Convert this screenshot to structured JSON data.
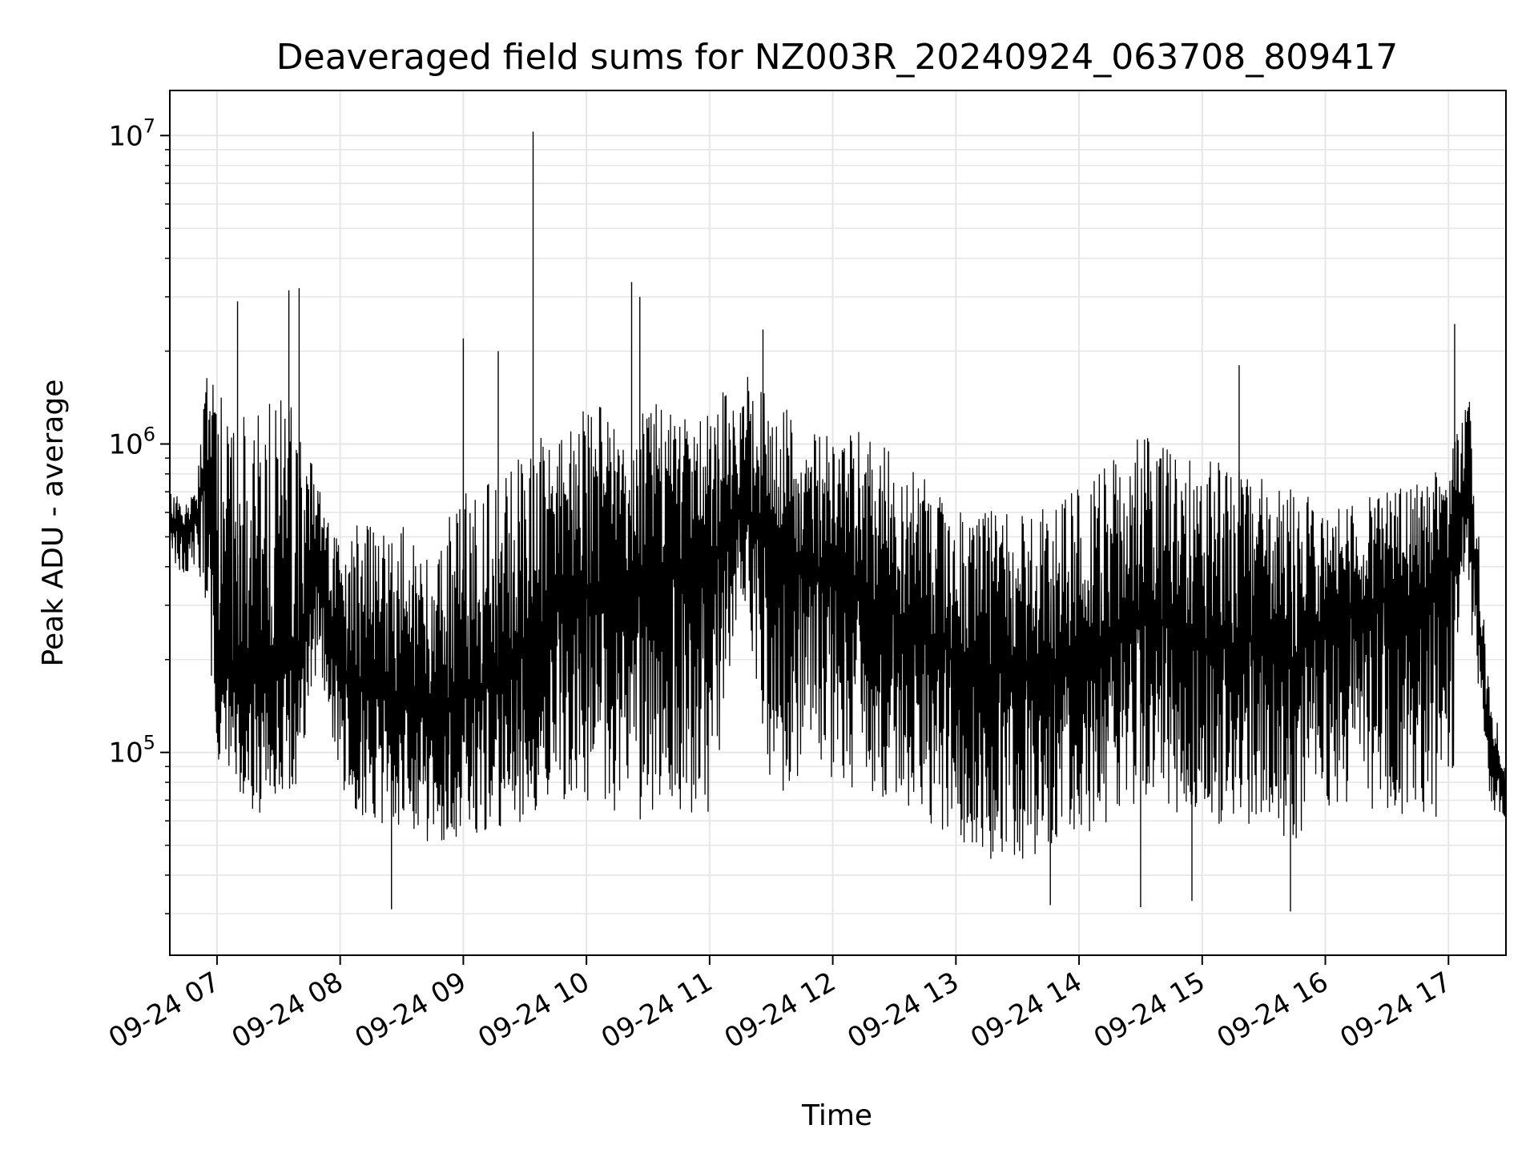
{
  "chart_data": {
    "type": "line",
    "title": "Deaveraged field sums for NZ003R_20240924_063708_809417",
    "xlabel": "Time",
    "ylabel": "Peak ADU - average",
    "yscale": "log",
    "grid": true,
    "legend": "none",
    "line_color": "#000000",
    "grid_color": "#e6e6e6",
    "xlim": [
      "2024-09-24 06:37",
      "2024-09-24 17:28"
    ],
    "ylim": [
      22000,
      14000000
    ],
    "x_ticks": [
      "2024-09-24 07:00",
      "2024-09-24 08:00",
      "2024-09-24 09:00",
      "2024-09-24 10:00",
      "2024-09-24 11:00",
      "2024-09-24 12:00",
      "2024-09-24 13:00",
      "2024-09-24 14:00",
      "2024-09-24 15:00",
      "2024-09-24 16:00",
      "2024-09-24 17:00"
    ],
    "x_tick_labels": [
      "09-24 07",
      "09-24 08",
      "09-24 09",
      "09-24 10",
      "09-24 11",
      "09-24 12",
      "09-24 13",
      "09-24 14",
      "09-24 15",
      "09-24 16",
      "09-24 17"
    ],
    "y_ticks": [
      100000,
      1000000,
      10000000
    ],
    "y_tick_labels": [
      {
        "base": "10",
        "exp": "5"
      },
      {
        "base": "10",
        "exp": "6"
      },
      {
        "base": "10",
        "exp": "7"
      }
    ],
    "series": [
      {
        "x": [
          "2024-09-24 06:37",
          "2024-09-24 06:45",
          "2024-09-24 06:50",
          "2024-09-24 06:55",
          "2024-09-24 07:00",
          "2024-09-24 07:10",
          "2024-09-24 07:20",
          "2024-09-24 07:30",
          "2024-09-24 07:40",
          "2024-09-24 07:50",
          "2024-09-24 08:00",
          "2024-09-24 08:15",
          "2024-09-24 08:30",
          "2024-09-24 08:45",
          "2024-09-24 09:00",
          "2024-09-24 09:15",
          "2024-09-24 09:30",
          "2024-09-24 09:45",
          "2024-09-24 10:00",
          "2024-09-24 10:15",
          "2024-09-24 10:30",
          "2024-09-24 10:45",
          "2024-09-24 11:00",
          "2024-09-24 11:15",
          "2024-09-24 11:30",
          "2024-09-24 11:45",
          "2024-09-24 12:00",
          "2024-09-24 12:15",
          "2024-09-24 12:30",
          "2024-09-24 12:45",
          "2024-09-24 13:00",
          "2024-09-24 13:15",
          "2024-09-24 13:30",
          "2024-09-24 13:45",
          "2024-09-24 14:00",
          "2024-09-24 14:15",
          "2024-09-24 14:30",
          "2024-09-24 14:45",
          "2024-09-24 15:00",
          "2024-09-24 15:15",
          "2024-09-24 15:30",
          "2024-09-24 15:45",
          "2024-09-24 16:00",
          "2024-09-24 16:15",
          "2024-09-24 16:30",
          "2024-09-24 16:45",
          "2024-09-24 17:00",
          "2024-09-24 17:10",
          "2024-09-24 17:20",
          "2024-09-24 17:28"
        ],
        "y_median": [
          550000,
          520000,
          560000,
          900000,
          250000,
          180000,
          170000,
          180000,
          200000,
          400000,
          170000,
          160000,
          150000,
          140000,
          160000,
          170000,
          220000,
          300000,
          320000,
          350000,
          380000,
          400000,
          420000,
          600000,
          450000,
          420000,
          380000,
          330000,
          280000,
          240000,
          210000,
          190000,
          180000,
          190000,
          210000,
          250000,
          280000,
          260000,
          230000,
          220000,
          240000,
          200000,
          280000,
          300000,
          310000,
          300000,
          420000,
          700000,
          90000,
          80000
        ],
        "y_high": [
          700000,
          650000,
          700000,
          1800000,
          1500000,
          1200000,
          1300000,
          1400000,
          1300000,
          700000,
          500000,
          600000,
          550000,
          500000,
          700000,
          800000,
          1000000,
          1100000,
          1300000,
          1400000,
          1350000,
          1350000,
          1300000,
          1900000,
          1350000,
          1300000,
          1200000,
          1100000,
          950000,
          800000,
          650000,
          620000,
          600000,
          650000,
          750000,
          900000,
          1100000,
          950000,
          900000,
          850000,
          800000,
          700000,
          650000,
          650000,
          700000,
          750000,
          900000,
          1500000,
          160000,
          95000
        ],
        "y_low": [
          400000,
          380000,
          400000,
          300000,
          90000,
          70000,
          60000,
          70000,
          80000,
          200000,
          70000,
          60000,
          55000,
          50000,
          50000,
          55000,
          60000,
          70000,
          70000,
          60000,
          60000,
          55000,
          55000,
          350000,
          70000,
          80000,
          80000,
          75000,
          70000,
          60000,
          50000,
          45000,
          45000,
          45000,
          50000,
          60000,
          70000,
          65000,
          60000,
          55000,
          55000,
          50000,
          65000,
          65000,
          65000,
          60000,
          60000,
          300000,
          65000,
          62000
        ]
      }
    ],
    "spikes": [
      {
        "x": "2024-09-24 07:10",
        "y": 2900000
      },
      {
        "x": "2024-09-24 07:35",
        "y": 3150000
      },
      {
        "x": "2024-09-24 07:40",
        "y": 3200000
      },
      {
        "x": "2024-09-24 08:25",
        "y": 31000
      },
      {
        "x": "2024-09-24 09:00",
        "y": 2200000
      },
      {
        "x": "2024-09-24 09:17",
        "y": 2000000
      },
      {
        "x": "2024-09-24 09:34",
        "y": 10300000
      },
      {
        "x": "2024-09-24 10:22",
        "y": 3350000
      },
      {
        "x": "2024-09-24 10:26",
        "y": 3000000
      },
      {
        "x": "2024-09-24 11:26",
        "y": 2350000
      },
      {
        "x": "2024-09-24 13:46",
        "y": 32000
      },
      {
        "x": "2024-09-24 14:30",
        "y": 31500
      },
      {
        "x": "2024-09-24 14:55",
        "y": 33000
      },
      {
        "x": "2024-09-24 15:18",
        "y": 1800000
      },
      {
        "x": "2024-09-24 15:43",
        "y": 30500
      },
      {
        "x": "2024-09-24 17:03",
        "y": 2450000
      }
    ]
  }
}
